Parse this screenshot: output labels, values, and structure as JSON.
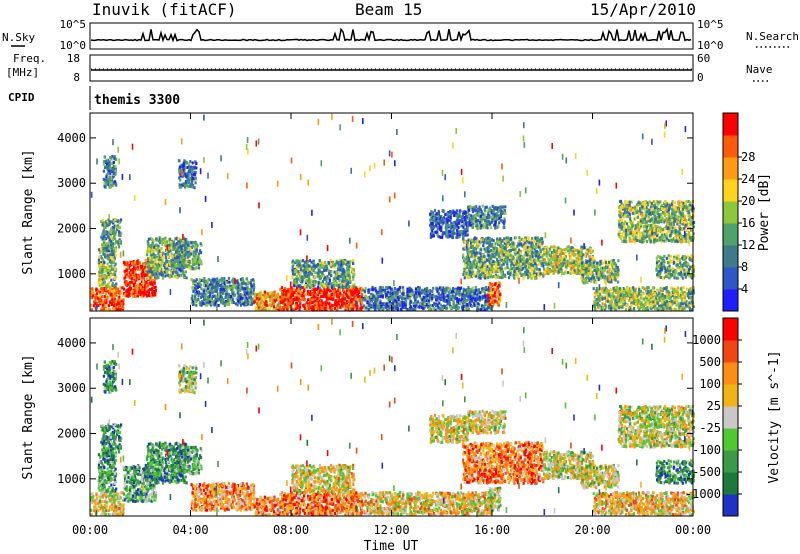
{
  "header": {
    "radar_title": "Inuvik (fitACF)",
    "beam": "Beam 15",
    "date": "15/Apr/2010"
  },
  "strips": {
    "nsky_label": "N.Sky",
    "nsearch_label": "N.Search",
    "freq_label_1": "Freq.",
    "freq_label_2": "[MHz]",
    "nave_label": "Nave",
    "cpid_label": "CPID",
    "cpid_value": "themis 3300",
    "nsky_ticks": [
      "10^5",
      "10^0"
    ],
    "nsearch_ticks": [
      "10^5",
      "10^0"
    ],
    "freq_ticks": [
      "18",
      "8"
    ],
    "nave_ticks": [
      "60",
      "0"
    ]
  },
  "chart_data": [
    {
      "type": "heatmap",
      "name": "power",
      "xlabel": "Time UT",
      "ylabel": "Slant Range [km]",
      "x_ticks": [
        "00:00",
        "04:00",
        "08:00",
        "12:00",
        "16:00",
        "20:00",
        "00:00"
      ],
      "xlim_hours": [
        0,
        24
      ],
      "y_ticks": [
        1000,
        2000,
        3000,
        4000
      ],
      "ylim": [
        180,
        4550
      ],
      "colorbar_label": "Power [dB]",
      "colorbar_ticks": [
        "4",
        "8",
        "12",
        "16",
        "20",
        "24",
        "28"
      ],
      "colorbar_colors": [
        "#1e1eff",
        "#2d56c8",
        "#3c7a8c",
        "#4fa36a",
        "#8cc83c",
        "#ffd21e",
        "#ff9a14",
        "#ff5a0a",
        "#ff0000"
      ],
      "clusters": [
        {
          "t": [
            0.0,
            1.3
          ],
          "r": [
            200,
            700
          ],
          "v": 0.85
        },
        {
          "t": [
            0.3,
            1.0
          ],
          "r": [
            700,
            1600
          ],
          "v": 0.45
        },
        {
          "t": [
            0.4,
            1.2
          ],
          "r": [
            1500,
            2200
          ],
          "v": 0.35
        },
        {
          "t": [
            0.5,
            1.0
          ],
          "r": [
            2900,
            3600
          ],
          "v": 0.3
        },
        {
          "t": [
            1.3,
            2.6
          ],
          "r": [
            500,
            1300
          ],
          "v": 0.92
        },
        {
          "t": [
            2.2,
            3.8
          ],
          "r": [
            900,
            1800
          ],
          "v": 0.4
        },
        {
          "t": [
            3.3,
            4.4
          ],
          "r": [
            1100,
            1700
          ],
          "v": 0.35
        },
        {
          "t": [
            3.5,
            4.2
          ],
          "r": [
            2900,
            3500
          ],
          "v": 0.2
        },
        {
          "t": [
            4.0,
            6.5
          ],
          "r": [
            300,
            900
          ],
          "v": 0.3
        },
        {
          "t": [
            6.5,
            8.0
          ],
          "r": [
            200,
            600
          ],
          "v": 0.7
        },
        {
          "t": [
            7.5,
            10.8
          ],
          "r": [
            200,
            700
          ],
          "v": 0.95
        },
        {
          "t": [
            8.0,
            10.5
          ],
          "r": [
            700,
            1300
          ],
          "v": 0.35
        },
        {
          "t": [
            10.8,
            16.0
          ],
          "r": [
            200,
            700
          ],
          "v": 0.25
        },
        {
          "t": [
            13.5,
            15.0
          ],
          "r": [
            1800,
            2400
          ],
          "v": 0.2
        },
        {
          "t": [
            14.8,
            18.0
          ],
          "r": [
            900,
            1800
          ],
          "v": 0.4
        },
        {
          "t": [
            15.0,
            16.5
          ],
          "r": [
            2000,
            2500
          ],
          "v": 0.3
        },
        {
          "t": [
            15.8,
            16.3
          ],
          "r": [
            300,
            800
          ],
          "v": 0.8
        },
        {
          "t": [
            18.0,
            20.0
          ],
          "r": [
            1000,
            1600
          ],
          "v": 0.5
        },
        {
          "t": [
            19.5,
            21.0
          ],
          "r": [
            800,
            1300
          ],
          "v": 0.4
        },
        {
          "t": [
            21.0,
            24.0
          ],
          "r": [
            1700,
            2600
          ],
          "v": 0.45
        },
        {
          "t": [
            22.5,
            24.0
          ],
          "r": [
            900,
            1400
          ],
          "v": 0.4
        },
        {
          "t": [
            20.0,
            24.0
          ],
          "r": [
            200,
            700
          ],
          "v": 0.45
        }
      ]
    },
    {
      "type": "heatmap",
      "name": "velocity",
      "xlabel": "Time UT",
      "ylabel": "Slant Range [km]",
      "x_ticks": [
        "00:00",
        "04:00",
        "08:00",
        "12:00",
        "16:00",
        "20:00",
        "00:00"
      ],
      "xlim_hours": [
        0,
        24
      ],
      "y_ticks": [
        1000,
        2000,
        3000,
        4000
      ],
      "ylim": [
        180,
        4550
      ],
      "colorbar_label": "Velocity [m s^-1]",
      "colorbar_ticks": [
        "1000",
        "500",
        "100",
        "25",
        "-25",
        "-100",
        "-500",
        "-1000"
      ],
      "colorbar_colors": [
        "#1e32c8",
        "#1e7a3c",
        "#3c9a46",
        "#50c832",
        "#c8c8c8",
        "#f0b414",
        "#ff8c14",
        "#f04614",
        "#ff0000"
      ],
      "clusters": [
        {
          "t": [
            0.0,
            1.3
          ],
          "r": [
            200,
            700
          ],
          "v": 0.55
        },
        {
          "t": [
            0.3,
            1.0
          ],
          "r": [
            700,
            1600
          ],
          "v": 0.3
        },
        {
          "t": [
            0.4,
            1.2
          ],
          "r": [
            1500,
            2200
          ],
          "v": 0.25
        },
        {
          "t": [
            0.5,
            1.0
          ],
          "r": [
            2900,
            3600
          ],
          "v": 0.25
        },
        {
          "t": [
            1.3,
            2.6
          ],
          "r": [
            500,
            1300
          ],
          "v": 0.3
        },
        {
          "t": [
            2.2,
            3.8
          ],
          "r": [
            900,
            1800
          ],
          "v": 0.25
        },
        {
          "t": [
            3.3,
            4.4
          ],
          "r": [
            1100,
            1700
          ],
          "v": 0.3
        },
        {
          "t": [
            3.5,
            4.2
          ],
          "r": [
            2900,
            3500
          ],
          "v": 0.4
        },
        {
          "t": [
            4.0,
            6.5
          ],
          "r": [
            300,
            900
          ],
          "v": 0.7
        },
        {
          "t": [
            6.5,
            8.0
          ],
          "r": [
            200,
            600
          ],
          "v": 0.7
        },
        {
          "t": [
            7.5,
            10.8
          ],
          "r": [
            200,
            700
          ],
          "v": 0.75
        },
        {
          "t": [
            8.0,
            10.5
          ],
          "r": [
            700,
            1300
          ],
          "v": 0.55
        },
        {
          "t": [
            10.8,
            16.0
          ],
          "r": [
            200,
            700
          ],
          "v": 0.6
        },
        {
          "t": [
            13.5,
            15.0
          ],
          "r": [
            1800,
            2400
          ],
          "v": 0.55
        },
        {
          "t": [
            14.8,
            18.0
          ],
          "r": [
            900,
            1800
          ],
          "v": 0.75
        },
        {
          "t": [
            15.0,
            16.5
          ],
          "r": [
            2000,
            2500
          ],
          "v": 0.55
        },
        {
          "t": [
            15.8,
            16.3
          ],
          "r": [
            300,
            800
          ],
          "v": 0.45
        },
        {
          "t": [
            18.0,
            20.0
          ],
          "r": [
            1000,
            1600
          ],
          "v": 0.5
        },
        {
          "t": [
            19.5,
            21.0
          ],
          "r": [
            800,
            1300
          ],
          "v": 0.5
        },
        {
          "t": [
            21.0,
            24.0
          ],
          "r": [
            1700,
            2600
          ],
          "v": 0.5
        },
        {
          "t": [
            22.5,
            24.0
          ],
          "r": [
            900,
            1400
          ],
          "v": 0.25
        },
        {
          "t": [
            20.0,
            24.0
          ],
          "r": [
            200,
            700
          ],
          "v": 0.6
        }
      ]
    }
  ]
}
